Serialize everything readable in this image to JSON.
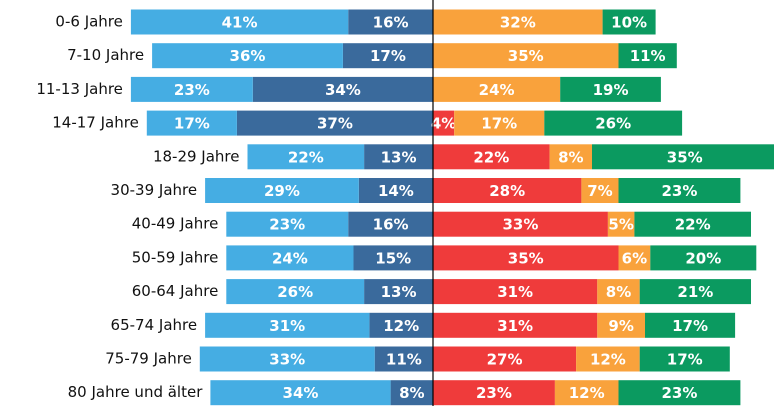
{
  "chart_data": {
    "type": "diverging_bar",
    "categories": [
      "0-6 Jahre",
      "7-10 Jahre",
      "11-13 Jahre",
      "14-17 Jahre",
      "18-29 Jahre",
      "30-39 Jahre",
      "40-49 Jahre",
      "50-59 Jahre",
      "60-64 Jahre",
      "65-74 Jahre",
      "75-79 Jahre",
      "80 Jahre und älter"
    ],
    "series": [
      {
        "color": "#3a6a9c",
        "direction": "left",
        "values": [
          16,
          17,
          34,
          37,
          13,
          14,
          16,
          15,
          13,
          12,
          11,
          8
        ],
        "value_labels": [
          "16%",
          "17%",
          "34%",
          "37%",
          "13%",
          "14%",
          "16%",
          "15%",
          "13%",
          "12%",
          "11%",
          "8%"
        ]
      },
      {
        "color": "#45ade3",
        "direction": "left",
        "values": [
          41,
          36,
          23,
          17,
          22,
          29,
          23,
          24,
          26,
          31,
          33,
          34
        ],
        "value_labels": [
          "41%",
          "36%",
          "23%",
          "17%",
          "22%",
          "29%",
          "23%",
          "24%",
          "26%",
          "31%",
          "33%",
          "34%"
        ]
      },
      {
        "color": "#ef3b3b",
        "direction": "right",
        "values": [
          null,
          null,
          null,
          4,
          22,
          28,
          33,
          35,
          31,
          31,
          27,
          23
        ],
        "value_labels": [
          null,
          null,
          null,
          "4%",
          "22%",
          "28%",
          "33%",
          "35%",
          "31%",
          "31%",
          "27%",
          "23%"
        ]
      },
      {
        "color": "#f9a23c",
        "direction": "right",
        "values": [
          32,
          35,
          24,
          17,
          8,
          7,
          5,
          6,
          8,
          9,
          12,
          12
        ],
        "value_labels": [
          "32%",
          "35%",
          "24%",
          "17%",
          "8%",
          "7%",
          "5%",
          "6%",
          "8%",
          "9%",
          "12%",
          "12%"
        ]
      },
      {
        "color": "#0b9a60",
        "direction": "right",
        "values": [
          10,
          11,
          19,
          26,
          35,
          23,
          22,
          20,
          21,
          17,
          17,
          23
        ],
        "value_labels": [
          "10%",
          "11%",
          "19%",
          "26%",
          "35%",
          "23%",
          "22%",
          "20%",
          "21%",
          "17%",
          "17%",
          "23%"
        ]
      }
    ]
  }
}
